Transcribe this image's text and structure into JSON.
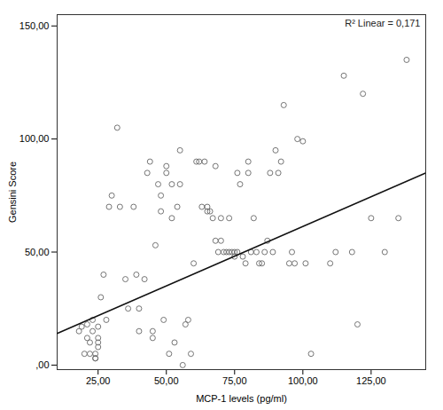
{
  "chart_data": {
    "type": "scatter",
    "xlabel": "MCP-1 levels (pg/ml)",
    "ylabel": "Gensini Score",
    "annotation": "R² Linear = 0,171",
    "xlim": [
      10,
      145
    ],
    "ylim": [
      -2,
      155
    ],
    "xticks": [
      {
        "value": 25,
        "label": "25,00"
      },
      {
        "value": 50,
        "label": "50,00"
      },
      {
        "value": 75,
        "label": "75,00"
      },
      {
        "value": 100,
        "label": "100,00"
      },
      {
        "value": 125,
        "label": "125,00"
      }
    ],
    "yticks": [
      {
        "value": 0,
        "label": ",00"
      },
      {
        "value": 50,
        "label": "50,00"
      },
      {
        "value": 100,
        "label": "100,00"
      },
      {
        "value": 150,
        "label": "150,00"
      }
    ],
    "grid": false,
    "series": [
      {
        "type": "scatter",
        "color": "#666666",
        "marker": "circle",
        "x": [
          18,
          19,
          20,
          21,
          21,
          22,
          22,
          23,
          23,
          24,
          24,
          24,
          25,
          25,
          25,
          25,
          26,
          27,
          28,
          29,
          30,
          32,
          33,
          35,
          36,
          38,
          39,
          40,
          40,
          42,
          43,
          44,
          45,
          45,
          46,
          47,
          48,
          48,
          49,
          50,
          50,
          51,
          52,
          52,
          53,
          54,
          55,
          55,
          56,
          57,
          58,
          59,
          60,
          61,
          62,
          63,
          64,
          65,
          65,
          66,
          67,
          68,
          68,
          69,
          70,
          70,
          71,
          72,
          73,
          73,
          74,
          75,
          75,
          76,
          76,
          77,
          78,
          79,
          80,
          80,
          81,
          82,
          83,
          84,
          85,
          86,
          87,
          88,
          89,
          90,
          91,
          92,
          93,
          95,
          96,
          97,
          98,
          100,
          101,
          103,
          110,
          112,
          115,
          118,
          120,
          122,
          125,
          130,
          135,
          138
        ],
        "values": [
          15,
          17,
          5,
          18,
          12,
          10,
          5,
          15,
          20,
          5,
          3,
          3,
          17,
          12,
          10,
          8,
          30,
          40,
          20,
          70,
          75,
          105,
          70,
          38,
          25,
          70,
          40,
          15,
          25,
          38,
          85,
          90,
          12,
          15,
          53,
          80,
          68,
          75,
          20,
          85,
          88,
          5,
          65,
          80,
          10,
          70,
          80,
          95,
          0,
          18,
          20,
          5,
          45,
          90,
          90,
          70,
          90,
          70,
          68,
          68,
          65,
          55,
          88,
          50,
          65,
          55,
          50,
          50,
          50,
          65,
          50,
          48,
          50,
          85,
          50,
          80,
          48,
          45,
          90,
          85,
          50,
          65,
          50,
          45,
          45,
          50,
          55,
          85,
          50,
          95,
          85,
          90,
          115,
          45,
          50,
          45,
          100,
          99,
          45,
          5,
          45,
          50,
          128,
          50,
          18,
          120,
          65,
          50,
          65,
          135
        ]
      },
      {
        "type": "line",
        "color": "#111111",
        "line_style": "solid",
        "x": [
          10,
          145
        ],
        "values": [
          14,
          85
        ]
      }
    ]
  }
}
